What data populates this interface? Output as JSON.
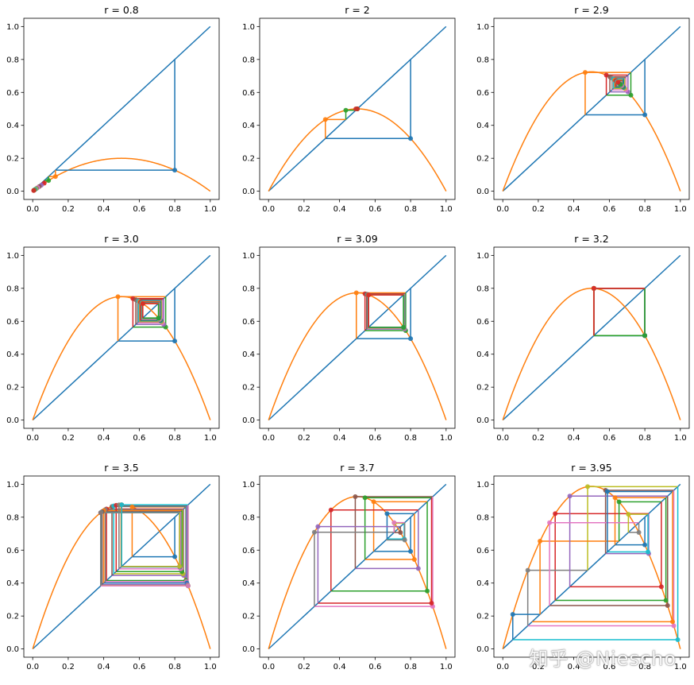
{
  "chart_data": {
    "type": "line",
    "description_series": [
      "diagonal y = x",
      "logistic map y = r·x·(1−x)",
      "cobweb iterations"
    ],
    "colors": {
      "diagonal": "#1f77b4",
      "curve": "#ff7f0e",
      "cycle": [
        "#1f77b4",
        "#ff7f0e",
        "#2ca02c",
        "#d62728",
        "#9467bd",
        "#8c564b",
        "#e377c2",
        "#7f7f7f",
        "#bcbd22",
        "#17becf"
      ]
    },
    "x0": 0.8,
    "xlim": [
      -0.05,
      1.05
    ],
    "ylim": [
      -0.05,
      1.05
    ],
    "x_ticks": [
      0.0,
      0.2,
      0.4,
      0.6,
      0.8,
      1.0
    ],
    "y_ticks": [
      0.0,
      0.2,
      0.4,
      0.6,
      0.8,
      1.0
    ],
    "x_tick_labels": [
      "0.0",
      "0.2",
      "0.4",
      "0.6",
      "0.8",
      "1.0"
    ],
    "y_tick_labels": [
      "0.0",
      "0.2",
      "0.4",
      "0.6",
      "0.8",
      "1.0"
    ],
    "panels": [
      {
        "title": "r = 0.8",
        "r": 0.8,
        "iterations": 14
      },
      {
        "title": "r = 2",
        "r": 2.0,
        "iterations": 14
      },
      {
        "title": "r = 2.9",
        "r": 2.9,
        "iterations": 24
      },
      {
        "title": "r = 3.0",
        "r": 3.0,
        "iterations": 24
      },
      {
        "title": "r = 3.09",
        "r": 3.09,
        "iterations": 24
      },
      {
        "title": "r = 3.2",
        "r": 3.2,
        "iterations": 24
      },
      {
        "title": "r = 3.5",
        "r": 3.5,
        "iterations": 30
      },
      {
        "title": "r = 3.7",
        "r": 3.7,
        "iterations": 18
      },
      {
        "title": "r = 3.95",
        "r": 3.95,
        "iterations": 22
      }
    ]
  },
  "watermark": "知乎 @Niescho"
}
